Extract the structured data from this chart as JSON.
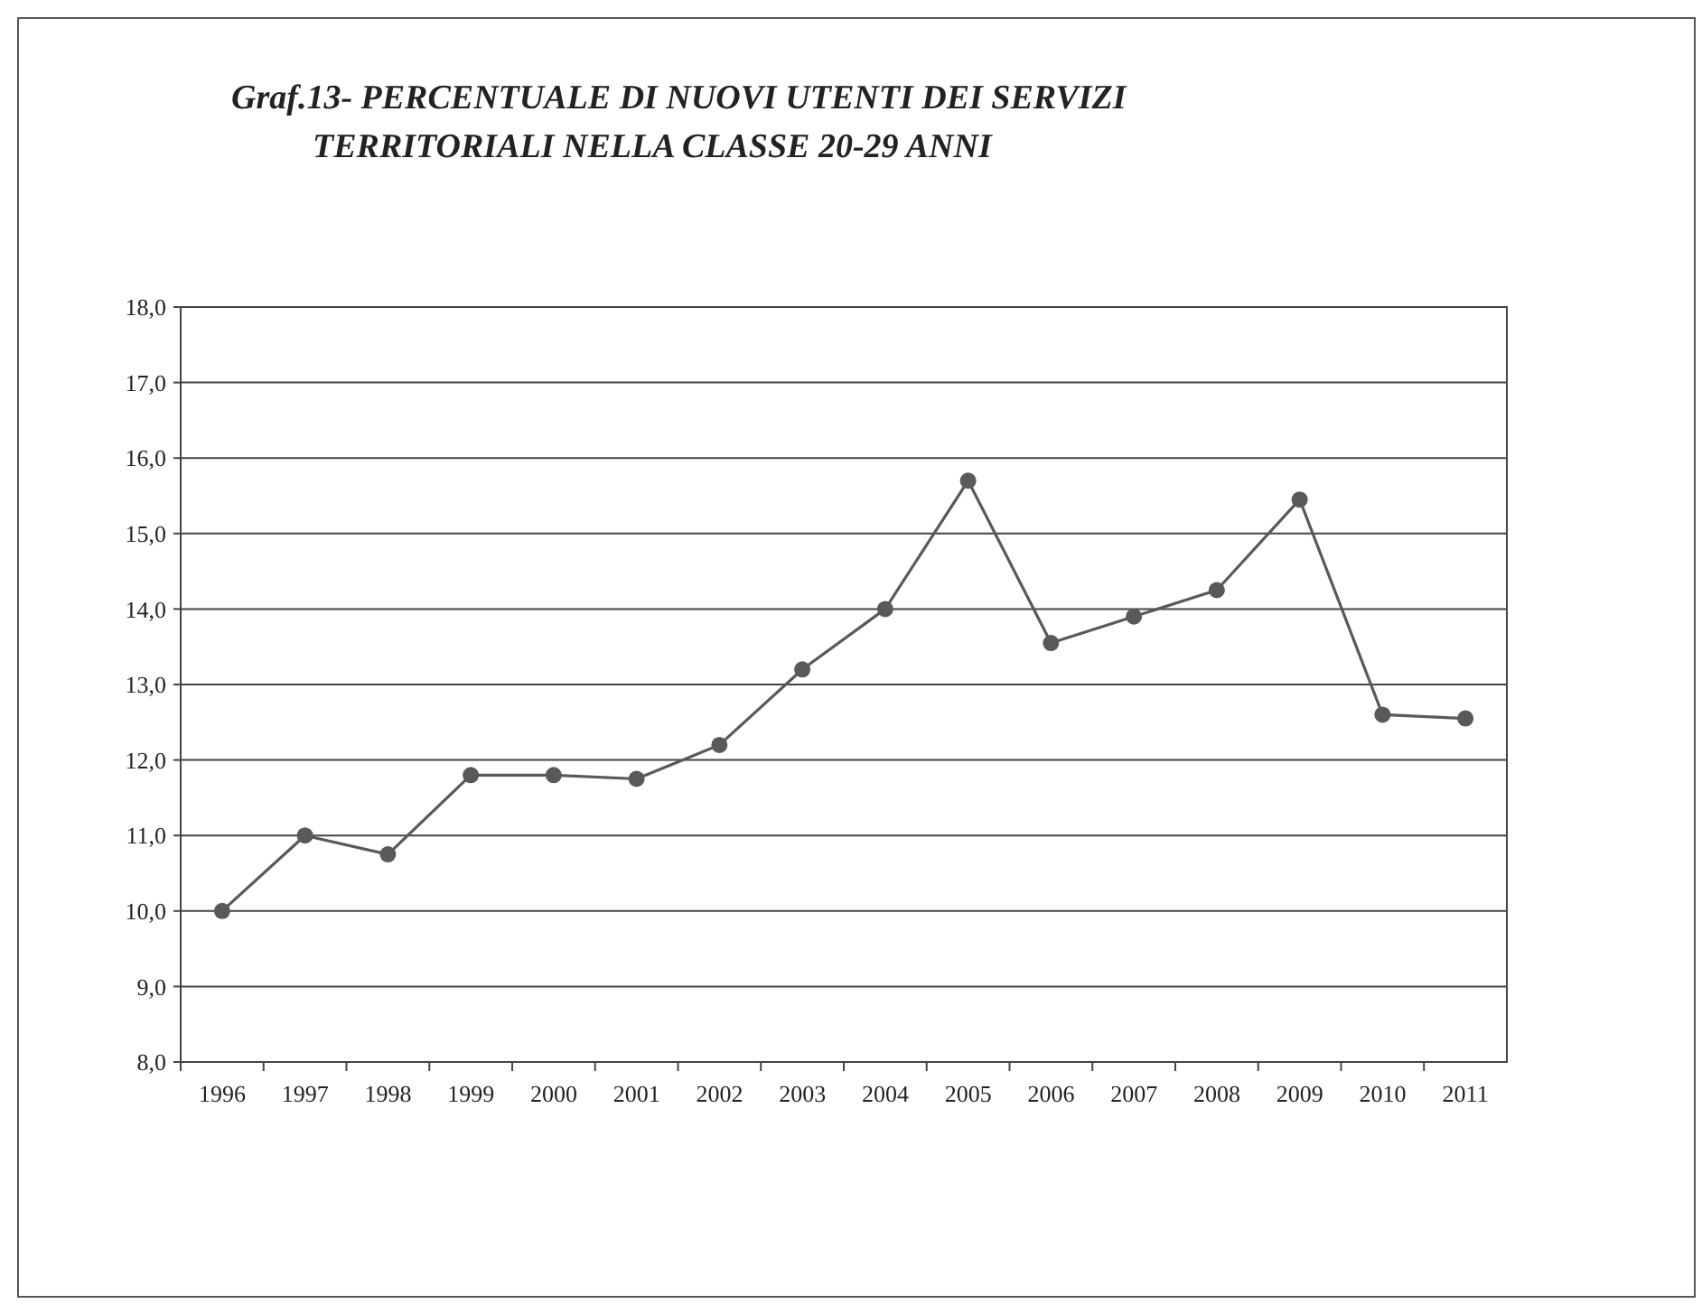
{
  "chart_data": {
    "type": "line",
    "title": "Graf.13-  PERCENTUALE DI NUOVI UTENTI DEI SERVIZI\nTERRITORIALI NELLA CLASSE 20-29 ANNI",
    "categories": [
      "1996",
      "1997",
      "1998",
      "1999",
      "2000",
      "2001",
      "2002",
      "2003",
      "2004",
      "2005",
      "2006",
      "2007",
      "2008",
      "2009",
      "2010",
      "2011"
    ],
    "series": [
      {
        "color": "#595959",
        "values": [
          10.0,
          11.0,
          10.75,
          11.8,
          11.8,
          11.75,
          12.2,
          13.2,
          14.0,
          15.7,
          13.55,
          13.9,
          14.25,
          15.45,
          12.6,
          12.55
        ]
      }
    ],
    "ylim": [
      8,
      18
    ],
    "yticks": [
      {
        "value": 8,
        "label": "8,0"
      },
      {
        "value": 9,
        "label": "9,0"
      },
      {
        "value": 10,
        "label": "10,0"
      },
      {
        "value": 11,
        "label": "11,0"
      },
      {
        "value": 12,
        "label": "12,0"
      },
      {
        "value": 13,
        "label": "13,0"
      },
      {
        "value": 14,
        "label": "14,0"
      },
      {
        "value": 15,
        "label": "15,0"
      },
      {
        "value": 16,
        "label": "16,0"
      },
      {
        "value": 17,
        "label": "17,0"
      },
      {
        "value": 18,
        "label": "18,0"
      }
    ],
    "grid": "y",
    "marker": "circle",
    "line_style": "solid"
  }
}
